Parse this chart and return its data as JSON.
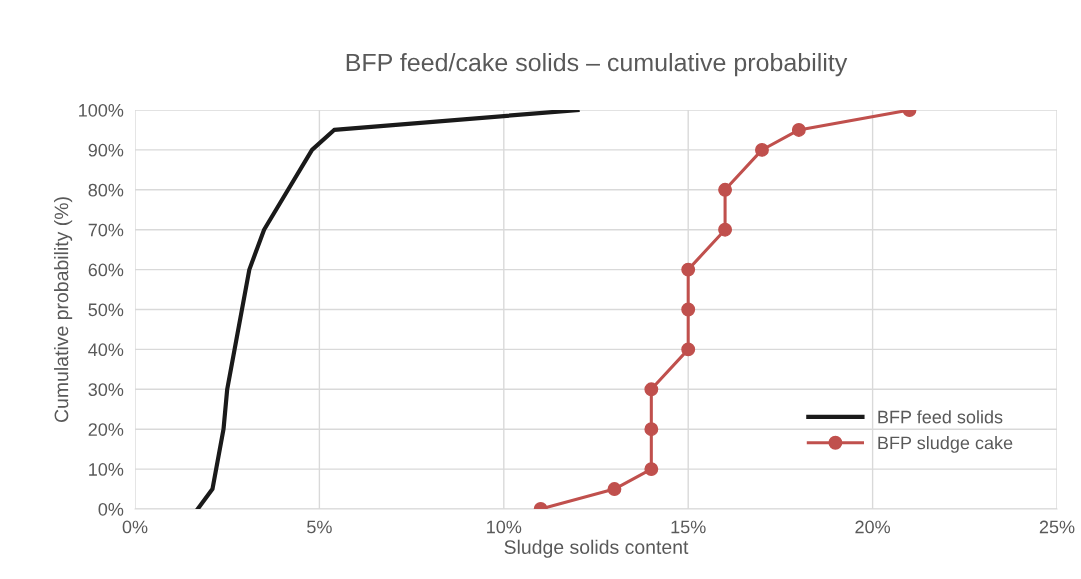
{
  "chart_data": {
    "type": "line",
    "title": "BFP feed/cake solids – cumulative probability",
    "xlabel": "Sludge solids content",
    "ylabel": "Cumulative probability (%)",
    "series": [
      {
        "name": "BFP feed solids",
        "color": "#1a1a1a",
        "marker": "none",
        "x": [
          1.7,
          2.1,
          2.4,
          2.5,
          3.1,
          3.5,
          4.15,
          4.8,
          5.4,
          12.0
        ],
        "values": [
          0,
          5,
          20,
          30,
          60,
          70,
          80,
          90,
          95,
          100
        ]
      },
      {
        "name": "BFP sludge cake",
        "color": "#c0504d",
        "marker": "circle",
        "x": [
          11,
          13,
          14,
          14,
          14,
          15,
          15,
          15,
          16,
          16,
          17,
          18,
          21
        ],
        "values": [
          0,
          5,
          10,
          20,
          30,
          40,
          50,
          60,
          70,
          80,
          90,
          95,
          100
        ]
      }
    ],
    "xlim": [
      0,
      25
    ],
    "xticks": [
      {
        "value": 0,
        "label": "0%"
      },
      {
        "value": 5,
        "label": "5%"
      },
      {
        "value": 10,
        "label": "10%"
      },
      {
        "value": 15,
        "label": "15%"
      },
      {
        "value": 20,
        "label": "20%"
      },
      {
        "value": 25,
        "label": "25%"
      }
    ],
    "ylim": [
      0,
      100
    ],
    "yticks": [
      {
        "value": 0,
        "label": "0%"
      },
      {
        "value": 10,
        "label": "10%"
      },
      {
        "value": 20,
        "label": "20%"
      },
      {
        "value": 30,
        "label": "30%"
      },
      {
        "value": 40,
        "label": "40%"
      },
      {
        "value": 50,
        "label": "50%"
      },
      {
        "value": 60,
        "label": "60%"
      },
      {
        "value": 70,
        "label": "70%"
      },
      {
        "value": 80,
        "label": "80%"
      },
      {
        "value": 90,
        "label": "90%"
      },
      {
        "value": 100,
        "label": "100%"
      }
    ],
    "grid": true,
    "legend": "lower right",
    "line_style": "solid"
  }
}
